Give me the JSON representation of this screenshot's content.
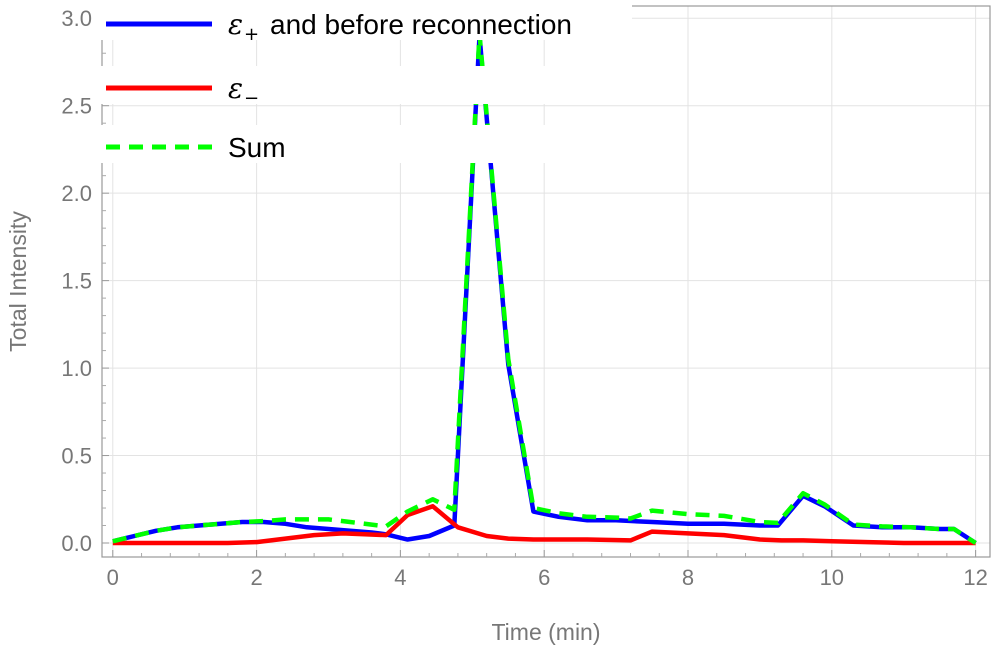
{
  "chart_data": {
    "type": "line",
    "xlabel": "Time (min)",
    "ylabel": "Total Intensity",
    "xlim": [
      -0.15,
      12.2
    ],
    "ylim": [
      -0.08,
      3.07
    ],
    "xticks": [
      0,
      2,
      4,
      6,
      8,
      10,
      12
    ],
    "xtick_labels": [
      "0",
      "2",
      "4",
      "6",
      "8",
      "10",
      "12"
    ],
    "yticks": [
      0.0,
      0.5,
      1.0,
      1.5,
      2.0,
      2.5,
      3.0
    ],
    "ytick_labels": [
      "0.0",
      "0.5",
      "1.0",
      "1.5",
      "2.0",
      "2.5",
      "3.0"
    ],
    "grid": true,
    "legend_position": "top-left",
    "series": [
      {
        "name": "and before reconnection",
        "legend_symbol": "ε",
        "legend_subscript": "+",
        "color": "#0000ff",
        "style": "solid",
        "x": [
          0,
          0.3,
          0.6,
          0.9,
          1.2,
          1.5,
          1.8,
          2.1,
          2.4,
          2.7,
          3.0,
          3.3,
          3.6,
          3.8,
          4.1,
          4.4,
          4.75,
          5.1,
          5.5,
          5.85,
          6.2,
          6.6,
          7.0,
          7.5,
          8.0,
          8.5,
          9.0,
          9.25,
          9.6,
          9.9,
          10.3,
          10.7,
          11.1,
          11.5,
          11.7,
          12.0
        ],
        "y": [
          0.01,
          0.04,
          0.07,
          0.09,
          0.1,
          0.11,
          0.12,
          0.12,
          0.11,
          0.09,
          0.08,
          0.07,
          0.06,
          0.05,
          0.02,
          0.04,
          0.1,
          2.9,
          1.02,
          0.18,
          0.15,
          0.13,
          0.13,
          0.12,
          0.11,
          0.11,
          0.1,
          0.1,
          0.27,
          0.21,
          0.1,
          0.09,
          0.09,
          0.08,
          0.08,
          0.0
        ]
      },
      {
        "name": "",
        "legend_symbol": "ε",
        "legend_subscript": "−",
        "color": "#ff0000",
        "style": "solid",
        "x": [
          0,
          0.4,
          0.8,
          1.2,
          1.6,
          2.0,
          2.4,
          2.8,
          3.2,
          3.5,
          3.8,
          4.1,
          4.45,
          4.8,
          5.2,
          5.5,
          5.85,
          6.2,
          6.6,
          7.2,
          7.5,
          8.0,
          8.5,
          9.0,
          9.3,
          9.6,
          10.0,
          10.5,
          11.0,
          11.5,
          12.0
        ],
        "y": [
          0.0,
          0.0,
          0.0,
          0.0,
          0.0,
          0.005,
          0.025,
          0.045,
          0.055,
          0.05,
          0.045,
          0.16,
          0.21,
          0.09,
          0.04,
          0.025,
          0.02,
          0.02,
          0.02,
          0.015,
          0.065,
          0.055,
          0.045,
          0.02,
          0.015,
          0.015,
          0.01,
          0.005,
          0.0,
          0.0,
          0.0
        ]
      },
      {
        "name": "Sum",
        "legend_symbol": "",
        "legend_subscript": "",
        "color": "#00ff00",
        "style": "dashed",
        "x": [
          0,
          0.3,
          0.6,
          0.9,
          1.2,
          1.5,
          1.8,
          2.1,
          2.4,
          2.7,
          3.0,
          3.3,
          3.6,
          3.8,
          4.1,
          4.45,
          4.75,
          5.1,
          5.5,
          5.85,
          6.2,
          6.6,
          7.0,
          7.2,
          7.5,
          8.0,
          8.5,
          9.0,
          9.25,
          9.6,
          9.9,
          10.3,
          10.7,
          11.1,
          11.5,
          11.7,
          12.0
        ],
        "y": [
          0.01,
          0.04,
          0.07,
          0.09,
          0.1,
          0.11,
          0.12,
          0.125,
          0.135,
          0.135,
          0.135,
          0.12,
          0.105,
          0.095,
          0.18,
          0.25,
          0.19,
          2.91,
          1.05,
          0.2,
          0.17,
          0.15,
          0.145,
          0.14,
          0.185,
          0.165,
          0.155,
          0.12,
          0.115,
          0.285,
          0.22,
          0.105,
          0.095,
          0.09,
          0.08,
          0.08,
          0.0
        ]
      }
    ]
  }
}
